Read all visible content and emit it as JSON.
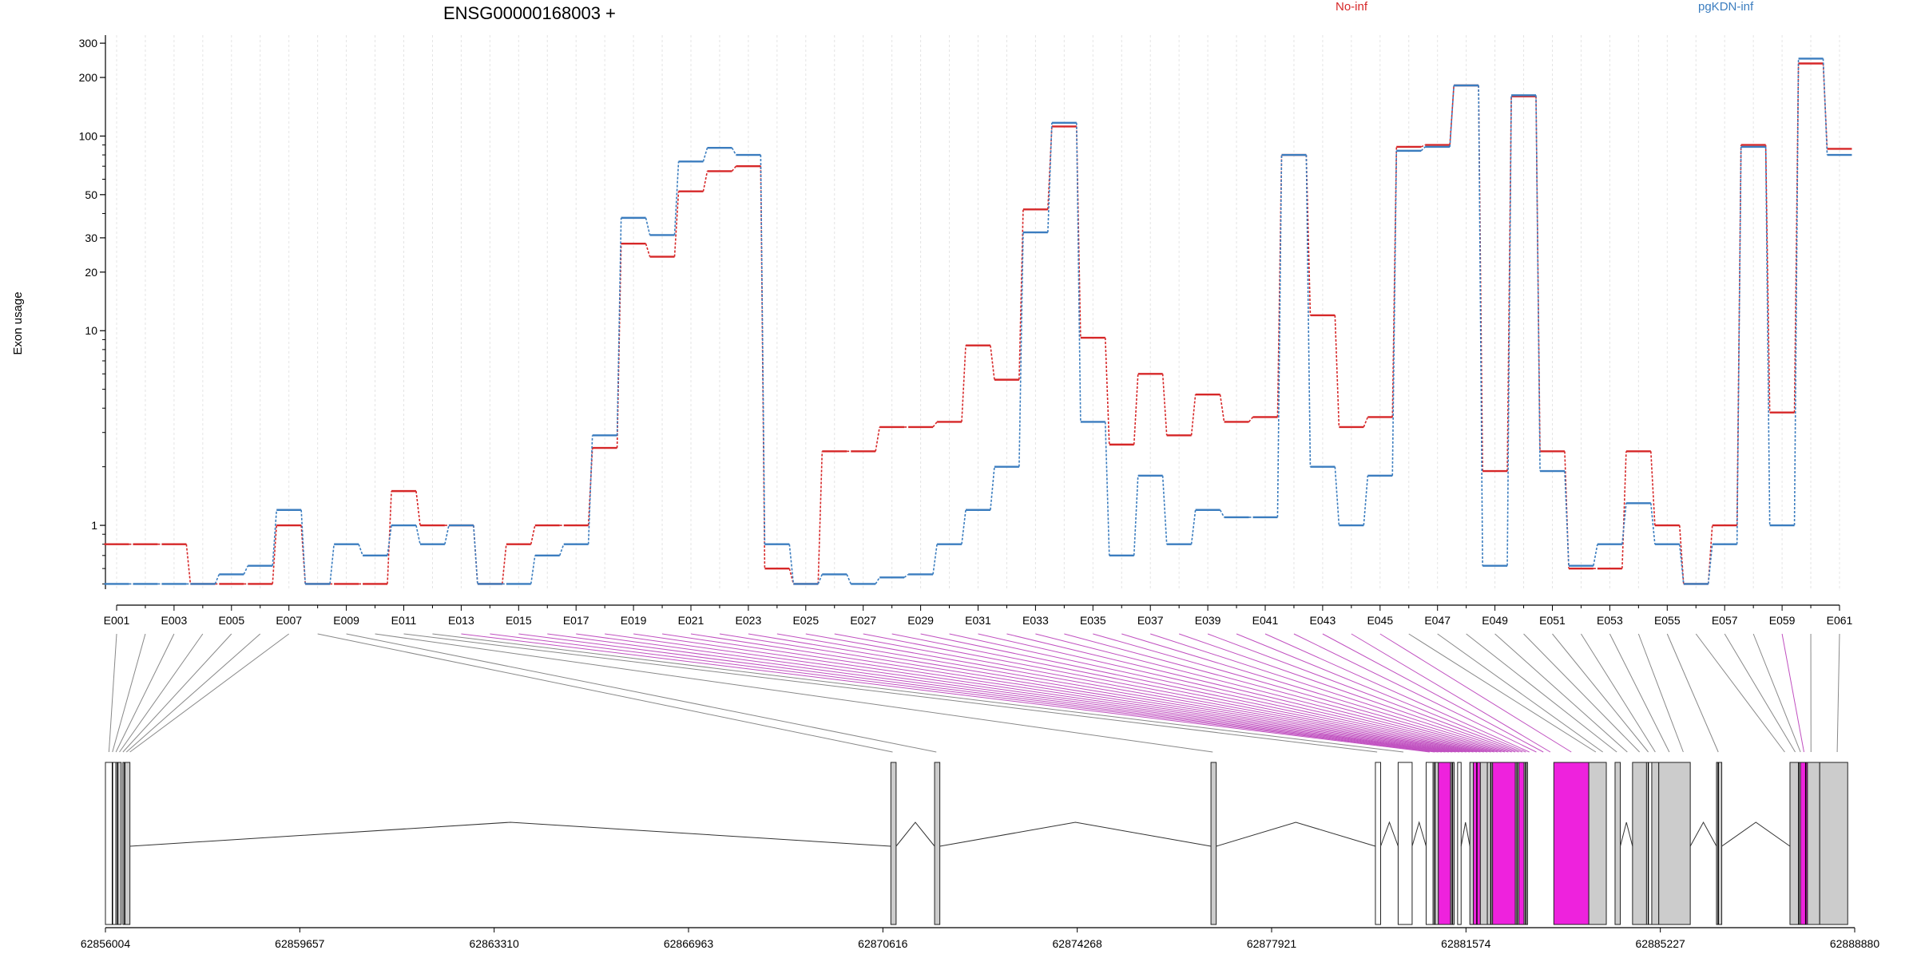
{
  "chart_data": {
    "type": "line",
    "title": "ENSG00000168003 +",
    "ylabel": "Exon usage",
    "yscale": "log",
    "ylim": [
      0.47,
      330
    ],
    "yticks": [
      1,
      10,
      20,
      30,
      50,
      100,
      200,
      300
    ],
    "yticklabels": [
      "1",
      "10",
      "20",
      "30",
      "50",
      "100",
      "200",
      "300"
    ],
    "grid": true,
    "legend_position": "top",
    "categories": [
      "E001",
      "E002",
      "E003",
      "E004",
      "E005",
      "E006",
      "E007",
      "E008",
      "E009",
      "E010",
      "E011",
      "E012",
      "E013",
      "E014",
      "E015",
      "E016",
      "E017",
      "E018",
      "E019",
      "E020",
      "E021",
      "E022",
      "E023",
      "E024",
      "E025",
      "E026",
      "E027",
      "E028",
      "E029",
      "E030",
      "E031",
      "E032",
      "E033",
      "E034",
      "E035",
      "E036",
      "E037",
      "E038",
      "E039",
      "E040",
      "E041",
      "E042",
      "E043",
      "E044",
      "E045",
      "E046",
      "E047",
      "E048",
      "E049",
      "E050",
      "E051",
      "E052",
      "E053",
      "E054",
      "E055",
      "E056",
      "E057",
      "E058",
      "E059",
      "E060",
      "E061"
    ],
    "xticklabels": [
      "E001",
      "E003",
      "E005",
      "E007",
      "E009",
      "E011",
      "E013",
      "E015",
      "E017",
      "E019",
      "E021",
      "E023",
      "E025",
      "E027",
      "E029",
      "E031",
      "E033",
      "E035",
      "E037",
      "E039",
      "E041",
      "E043",
      "E045",
      "E047",
      "E049",
      "E051",
      "E053",
      "E055",
      "E057",
      "E059",
      "E061"
    ],
    "series": [
      {
        "name": "No-inf",
        "color": "#d62728",
        "values": [
          0.8,
          0.8,
          0.8,
          0.5,
          0.5,
          0.5,
          1.0,
          0.5,
          0.5,
          0.5,
          1.5,
          1.0,
          1.0,
          0.5,
          0.8,
          1.0,
          1.0,
          2.5,
          28,
          24,
          52,
          66,
          70,
          0.6,
          0.5,
          2.4,
          2.4,
          3.2,
          3.2,
          3.4,
          8.4,
          5.6,
          42,
          112,
          9.2,
          2.6,
          6.0,
          2.9,
          4.7,
          3.4,
          3.6,
          80,
          12,
          3.2,
          3.6,
          88,
          90,
          182,
          1.9,
          160,
          2.4,
          0.6,
          0.6,
          2.4,
          1.0,
          0.5,
          1.0,
          90,
          3.8,
          236,
          86
        ]
      },
      {
        "name": "pgKDN-inf",
        "color": "#3b7dbf",
        "values": [
          0.5,
          0.5,
          0.5,
          0.5,
          0.56,
          0.62,
          1.2,
          0.5,
          0.8,
          0.7,
          1.0,
          0.8,
          1.0,
          0.5,
          0.5,
          0.7,
          0.8,
          2.9,
          38,
          31,
          74,
          87,
          80,
          0.8,
          0.5,
          0.56,
          0.5,
          0.54,
          0.56,
          0.8,
          1.2,
          2.0,
          32,
          117,
          3.4,
          0.7,
          1.8,
          0.8,
          1.2,
          1.1,
          1.1,
          80,
          2.0,
          1.0,
          1.8,
          84,
          88,
          182,
          0.62,
          162,
          1.9,
          0.62,
          0.8,
          1.3,
          0.8,
          0.5,
          0.8,
          88,
          1.0,
          250,
          80
        ]
      }
    ]
  },
  "gene_model": {
    "axis_ticks": [
      "62856004",
      "62859657",
      "62863310",
      "62866963",
      "62870616",
      "62874268",
      "62877921",
      "62881574",
      "62885227",
      "62888880"
    ],
    "colors": {
      "exon_fill": "#cccccc",
      "highlight": "#ee22dd",
      "line": "#000000",
      "connector_gray": "#888888",
      "connector_highlight": "#c050c0"
    }
  }
}
